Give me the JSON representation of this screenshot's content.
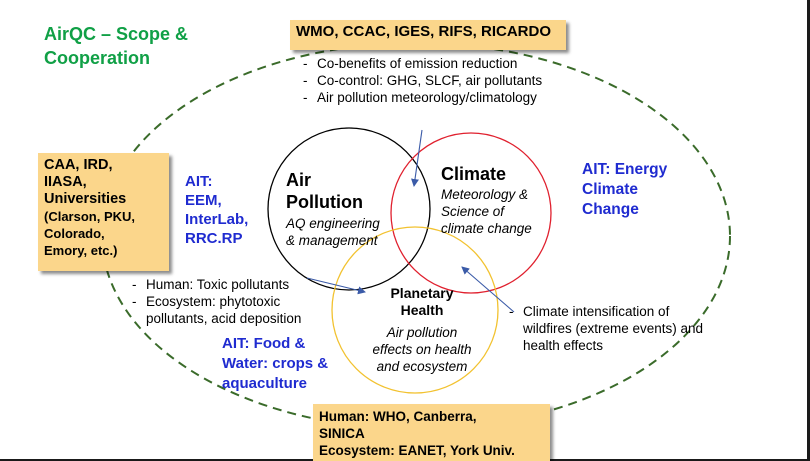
{
  "title": "AirQC – Scope & Cooperation",
  "boxes": {
    "top": "WMO, CCAC, IGES, RIFS, RICARDO",
    "left": {
      "line1": "CAA, IRD,",
      "line2": "IIASA,",
      "line3": "Universities",
      "line4": "(Clarson, PKU,",
      "line5": "Colorado,",
      "line6": "Emory, etc.)"
    },
    "bottom": {
      "line1": "Human: WHO, Canberra,",
      "line2": "SINICA",
      "line3": "Ecosystem: EANET, York Univ."
    }
  },
  "ait": {
    "left": {
      "line1": "AIT:",
      "line2": "EEM,",
      "line3": "InterLab,",
      "line4": "RRC.RP"
    },
    "right": {
      "line1": "AIT: Energy",
      "line2": "Climate",
      "line3": "Change"
    },
    "bottom": {
      "line1": "AIT: Food &",
      "line2": "Water: crops &",
      "line3": "aquaculture"
    }
  },
  "bullets": {
    "top": [
      "Co-benefits of emission reduction",
      "Co-control: GHG, SLCF, air pollutants",
      "Air pollution meteorology/climatology"
    ],
    "left": [
      "Human: Toxic pollutants",
      "Ecosystem: phytotoxic pollutants, acid deposition"
    ],
    "right": [
      "Climate intensification of wildfires (extreme events) and health effects"
    ]
  },
  "circles": {
    "air": {
      "title_line1": "Air",
      "title_line2": "Pollution",
      "sub_line1": "AQ engineering",
      "sub_line2": "& management"
    },
    "climate": {
      "title": "Climate",
      "sub_line1": "Meteorology &",
      "sub_line2": "Science of",
      "sub_line3": "climate change"
    },
    "planetary": {
      "title_line1": "Planetary",
      "title_line2": "Health",
      "sub_line1": "Air pollution",
      "sub_line2": "effects on health",
      "sub_line3": "and ecosystem"
    }
  },
  "colors": {
    "title": "#10a046",
    "ait": "#1f2bd0",
    "box_fill": "#fbd68b",
    "air_circle": "#000000",
    "climate_circle": "#e0202e",
    "planetary_circle": "#f2c230",
    "outer_ellipse": "#3a6b2a",
    "arrow": "#3b5ba8"
  }
}
